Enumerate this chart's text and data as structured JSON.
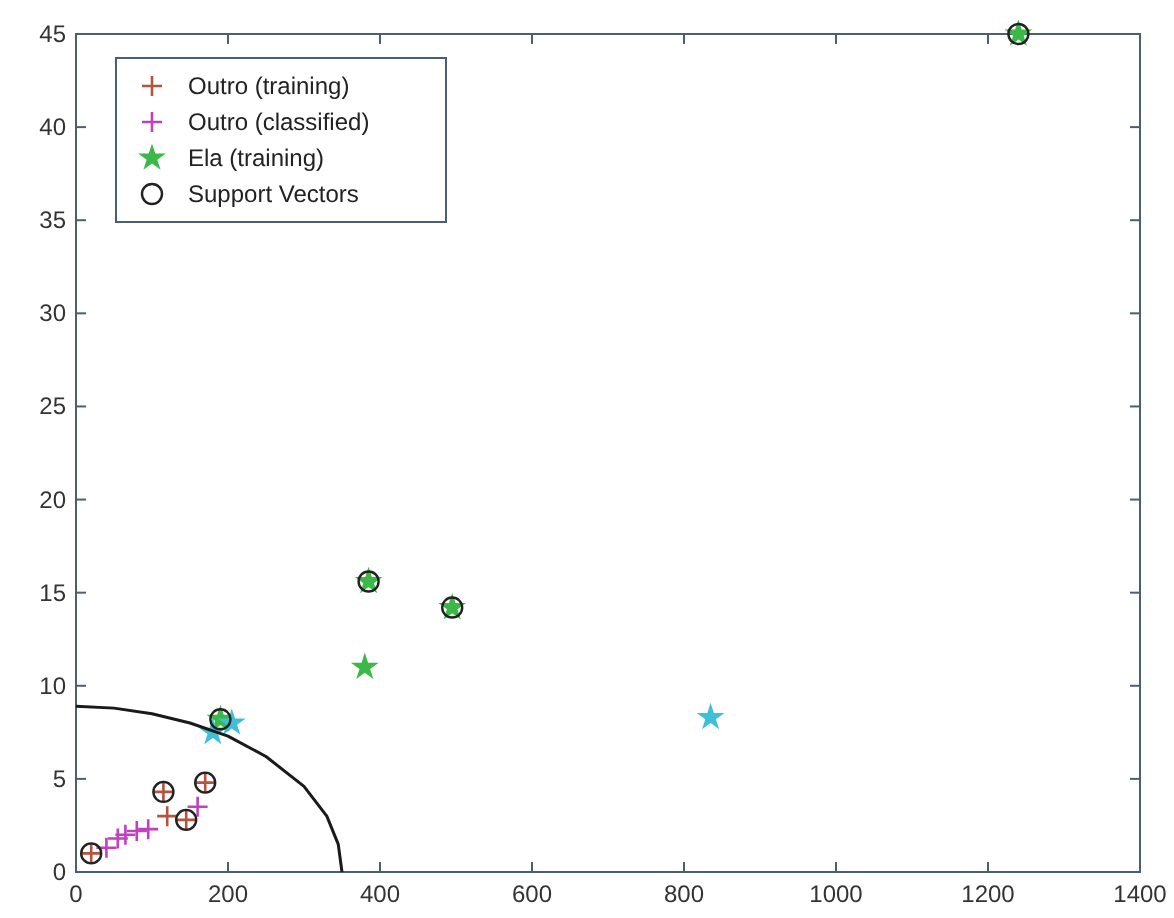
{
  "chart_data": {
    "type": "scatter",
    "xlim": [
      0,
      1400
    ],
    "ylim": [
      0,
      45
    ],
    "xticks": [
      0,
      200,
      400,
      600,
      800,
      1000,
      1200,
      1400
    ],
    "yticks": [
      0,
      5,
      10,
      15,
      20,
      25,
      30,
      35,
      40,
      45
    ],
    "grid": false,
    "legend": "top left",
    "series": [
      {
        "name": "Outro (training)",
        "color": "#b5533c",
        "marker": "cross",
        "x": [
          20,
          115,
          120,
          145,
          170
        ],
        "values": [
          1,
          4.3,
          3,
          2.8,
          4.8
        ]
      },
      {
        "name": "Outro (classified)",
        "color": "#c040c0",
        "marker": "cross",
        "x": [
          40,
          55,
          65,
          80,
          95,
          160
        ],
        "values": [
          1.3,
          1.8,
          2,
          2.2,
          2.3,
          3.5
        ]
      },
      {
        "name": "Ela (training)",
        "color": "#3cb846",
        "marker": "star",
        "x": [
          190,
          385,
          380,
          495,
          1240
        ],
        "values": [
          8.2,
          15.6,
          11,
          14.2,
          45
        ]
      },
      {
        "color": "#40c0d8",
        "marker": "star",
        "x": [
          180,
          205,
          835
        ],
        "values": [
          7.5,
          8,
          8.3
        ]
      },
      {
        "name": "Support Vectors",
        "color": "#222222",
        "marker": "circle",
        "x": [
          20,
          115,
          145,
          170,
          190,
          385,
          495,
          1240
        ],
        "values": [
          1,
          4.3,
          2.8,
          4.8,
          8.2,
          15.6,
          14.2,
          45
        ]
      },
      {
        "type": "line",
        "color": "#1a1a1a",
        "marker": "none",
        "x": [
          0,
          50,
          100,
          150,
          200,
          250,
          300,
          330,
          345,
          350
        ],
        "values": [
          8.9,
          8.8,
          8.5,
          8,
          7.3,
          6.2,
          4.6,
          3,
          1.5,
          0
        ]
      }
    ]
  }
}
